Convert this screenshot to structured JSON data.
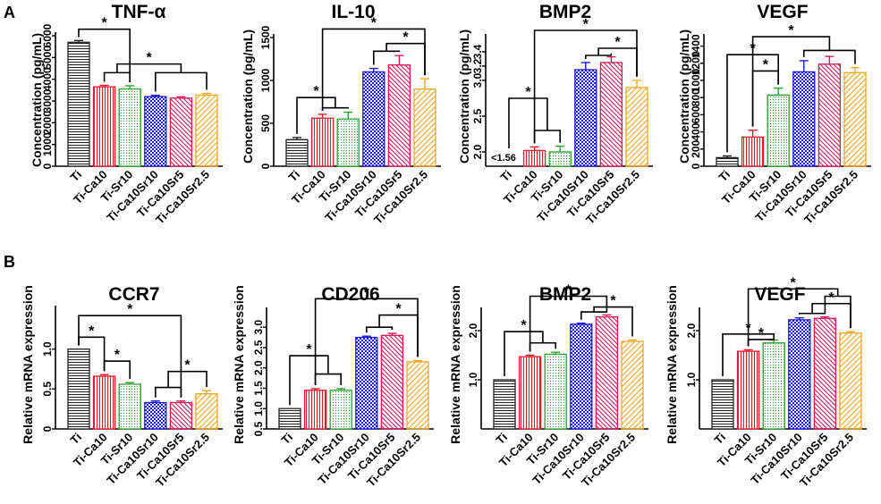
{
  "panels": [
    {
      "letter": "A"
    },
    {
      "letter": "B"
    }
  ],
  "groups": [
    "Ti",
    "Ti-Ca10",
    "Ti-Sr10",
    "Ti-Ca10Sr10",
    "Ti-Ca10Sr5",
    "Ti-Ca10Sr2.5"
  ],
  "group_colors": [
    "#222222",
    "#e8192c",
    "#2ca02c",
    "#1a1adc",
    "#d6185a",
    "#f5a623"
  ],
  "group_patterns": [
    "hlines",
    "vlines",
    "dots",
    "checker",
    "diag",
    "diagthin"
  ],
  "chart_data": [
    {
      "type": "bar",
      "panel": "A",
      "title": "TNF-α",
      "ylabel": "Concentration (pg/mL)",
      "categories": [
        "Ti",
        "Ti-Ca10",
        "Ti-Sr10",
        "Ti-Ca10Sr10",
        "Ti-Ca10Sr5",
        "Ti-Ca10Sr2.5"
      ],
      "values": [
        5700,
        3650,
        3550,
        3200,
        3130,
        3270
      ],
      "errors": [
        80,
        70,
        150,
        60,
        60,
        80
      ],
      "ylim": [
        0,
        6000
      ],
      "yticks": [
        0,
        1000,
        2000,
        3000,
        4000,
        5000,
        6000
      ],
      "ytick_labels": [
        "0",
        "1000",
        "2000",
        "3000",
        "4000",
        "5000",
        "6000"
      ],
      "annotations": [
        {
          "type": "bracket",
          "from": 0,
          "to": 2,
          "level": 6300,
          "label": "*"
        },
        {
          "type": "group-bracket",
          "left_from": 1,
          "left_to": 2,
          "right_from": 3,
          "right_to": 5,
          "low": 4300,
          "mid": 4700,
          "top": 5200,
          "label": "*"
        }
      ]
    },
    {
      "type": "bar",
      "panel": "A",
      "title": "IL-10",
      "ylabel": "Concentration (pg/mL)",
      "categories": [
        "Ti",
        "Ti-Ca10",
        "Ti-Sr10",
        "Ti-Ca10Sr10",
        "Ti-Ca10Sr5",
        "Ti-Ca10Sr2.5"
      ],
      "values": [
        310,
        560,
        550,
        1100,
        1180,
        900
      ],
      "errors": [
        25,
        45,
        80,
        40,
        110,
        120
      ],
      "ylim": [
        0,
        1500
      ],
      "yticks": [
        0,
        500,
        1000,
        1500
      ],
      "ytick_labels": [
        "0",
        "500",
        "1000",
        "1500"
      ],
      "annotations": [
        {
          "type": "group-bracket-single",
          "single": 0,
          "group_from": 1,
          "group_to": 2,
          "group_low": 680,
          "level": 800,
          "label": "*"
        },
        {
          "type": "group-bracket-single",
          "single": 5,
          "group_from": 3,
          "group_to": 4,
          "group_low": 1340,
          "level": 1430,
          "label": "*"
        },
        {
          "type": "bracket",
          "from": 1,
          "to": 5,
          "level": 1600,
          "label": "*"
        }
      ]
    },
    {
      "type": "bar",
      "panel": "A",
      "title": "BMP2",
      "ylabel": "Concentration (pg/mL)",
      "categories": [
        "Ti",
        "Ti-Ca10",
        "Ti-Sr10",
        "Ti-Ca10Sr10",
        "Ti-Ca10Sr5",
        "Ti-Ca10Sr2.5"
      ],
      "values": [
        null,
        2.02,
        2.0,
        3.15,
        3.25,
        2.9
      ],
      "errors": [
        0,
        0.05,
        0.08,
        0.1,
        0.08,
        0.1
      ],
      "ylim": [
        1.8,
        3.6
      ],
      "yticks": [
        2.0,
        2.5,
        3.0,
        3.2,
        3.4
      ],
      "ytick_labels": [
        "2.0",
        "2.5",
        "3.0",
        "3.2",
        "3.4"
      ],
      "below_limit_text": "<1.56",
      "annotations": [
        {
          "type": "group-bracket-single",
          "single": 0,
          "group_from": 1,
          "group_to": 2,
          "group_low": 2.3,
          "level": 2.75,
          "label": "*"
        },
        {
          "type": "group-bracket-single",
          "single": 5,
          "group_from": 3,
          "group_to": 4,
          "group_low": 3.35,
          "level": 3.45,
          "label": "*"
        },
        {
          "type": "bracket",
          "from": 1,
          "to": 5,
          "level": 3.7,
          "label": "*"
        }
      ]
    },
    {
      "type": "bar",
      "panel": "A",
      "title": "VEGF",
      "ylabel": "Concentration (pg/mL)",
      "categories": [
        "Ti",
        "Ti-Ca10",
        "Ti-Sr10",
        "Ti-Ca10Sr10",
        "Ti-Ca10Sr5",
        "Ti-Ca10Sr2.5"
      ],
      "values": [
        100,
        340,
        830,
        1100,
        1190,
        1090
      ],
      "errors": [
        20,
        80,
        80,
        130,
        90,
        60
      ],
      "ylim": [
        0,
        1500
      ],
      "yticks": [
        0,
        200,
        400,
        600,
        800,
        1000,
        1200,
        1400
      ],
      "ytick_labels": [
        "0",
        "200",
        "400",
        "600",
        "800",
        "1000",
        "1200",
        "1400"
      ],
      "annotations": [
        {
          "type": "bracket",
          "from": 0,
          "to": 2,
          "level": 1300,
          "label": "*"
        },
        {
          "type": "bracket",
          "from": 1,
          "to": 2,
          "level": 1110,
          "label": "*"
        },
        {
          "type": "group-bracket-single",
          "single": 1,
          "group_from": 3,
          "group_to": 5,
          "group_low": 1350,
          "level": 1510,
          "label": "*"
        }
      ]
    },
    {
      "type": "bar",
      "panel": "B",
      "title": "CCR7",
      "ylabel": "Relative mRNA expression",
      "categories": [
        "Ti",
        "Ti-Ca10",
        "Ti-Sr10",
        "Ti-Ca10Sr10",
        "Ti-Ca10Sr5",
        "Ti-Ca10Sr2.5"
      ],
      "values": [
        1.0,
        0.66,
        0.56,
        0.33,
        0.33,
        0.44
      ],
      "errors": [
        0,
        0.02,
        0.02,
        0.02,
        0.02,
        0.04
      ],
      "ylim": [
        0,
        1.5
      ],
      "yticks": [
        0,
        0.5,
        1.0
      ],
      "ytick_labels": [
        "0",
        "0.5",
        "1.0"
      ],
      "annotations": [
        {
          "type": "bracket",
          "from": 0,
          "to": 1,
          "level": 1.15,
          "label": "*"
        },
        {
          "type": "bracket",
          "from": 1,
          "to": 2,
          "level": 0.85,
          "label": "*"
        },
        {
          "type": "group-bracket-single",
          "single": 5,
          "group_from": 3,
          "group_to": 4,
          "group_low": 0.52,
          "level": 0.72,
          "label": "*"
        },
        {
          "type": "bracket",
          "from": 0,
          "to": 4,
          "level": 1.42,
          "label": "*"
        }
      ]
    },
    {
      "type": "bar",
      "panel": "B",
      "title": "CD206",
      "ylabel": "Relative mRNA expression",
      "categories": [
        "Ti",
        "Ti-Ca10",
        "Ti-Sr10",
        "Ti-Ca10Sr10",
        "Ti-Ca10Sr5",
        "Ti-Ca10Sr2.5"
      ],
      "values": [
        1.0,
        1.45,
        1.45,
        2.75,
        2.8,
        2.15
      ],
      "errors": [
        0,
        0.04,
        0.04,
        0.03,
        0.05,
        0.03
      ],
      "ylim": [
        0.5,
        3.4
      ],
      "yticks": [
        0.5,
        1.0,
        1.5,
        2.0,
        2.5,
        3.0
      ],
      "ytick_labels": [
        "0.5",
        "1.0",
        "1.5",
        "2.0",
        "2.5",
        "3.0"
      ],
      "annotations": [
        {
          "type": "group-bracket-single",
          "single": 0,
          "group_from": 1,
          "group_to": 2,
          "group_low": 1.85,
          "level": 2.3,
          "label": "*"
        },
        {
          "type": "group-bracket-single",
          "single": 5,
          "group_from": 3,
          "group_to": 4,
          "group_low": 3.0,
          "level": 3.3,
          "label": "*"
        },
        {
          "type": "bracket",
          "from": 1,
          "to": 5,
          "level": 3.7,
          "label": "*"
        }
      ]
    },
    {
      "type": "bar",
      "panel": "B",
      "title": "BMP2",
      "ylabel": "Relative mRNA expression",
      "categories": [
        "Ti",
        "Ti-Ca10",
        "Ti-Sr10",
        "Ti-Ca10Sr10",
        "Ti-Ca10Sr5",
        "Ti-Ca10Sr2.5"
      ],
      "values": [
        1.0,
        1.47,
        1.52,
        2.13,
        2.28,
        1.78
      ],
      "errors": [
        0,
        0.03,
        0.04,
        0.02,
        0.04,
        0.03
      ],
      "ylim": [
        0,
        2.4
      ],
      "yticks": [
        1.0,
        2.0
      ],
      "ytick_labels": [
        "1.0",
        "2.0"
      ],
      "annotations": [
        {
          "type": "group-bracket-single",
          "single": 0,
          "group_from": 1,
          "group_to": 2,
          "group_low": 1.75,
          "level": 1.98,
          "label": "*"
        },
        {
          "type": "group-bracket-single",
          "single": 5,
          "group_from": 3,
          "group_to": 4,
          "group_low": 2.38,
          "level": 2.48,
          "label": "*"
        },
        {
          "type": "bracket",
          "from": 1,
          "to": 4,
          "level": 2.7,
          "label": "*"
        }
      ]
    },
    {
      "type": "bar",
      "panel": "B",
      "title": "VEGF",
      "ylabel": "Relative mRNA expression",
      "categories": [
        "Ti",
        "Ti-Ca10",
        "Ti-Sr10",
        "Ti-Ca10Sr10",
        "Ti-Ca10Sr5",
        "Ti-Ca10Sr2.5"
      ],
      "values": [
        1.0,
        1.58,
        1.75,
        2.22,
        2.25,
        1.95
      ],
      "errors": [
        0,
        0.03,
        0.06,
        0.04,
        0.03,
        0.03
      ],
      "ylim": [
        0,
        2.4
      ],
      "yticks": [
        1.0,
        2.0
      ],
      "ytick_labels": [
        "1.0",
        "2.0"
      ],
      "annotations": [
        {
          "type": "bracket",
          "from": 0,
          "to": 2,
          "level": 1.93,
          "label": "*"
        },
        {
          "type": "bracket",
          "from": 1,
          "to": 2,
          "level": 1.82,
          "label": "*"
        },
        {
          "type": "group-bracket-single",
          "single": 5,
          "group_from": 3,
          "group_to": 4,
          "group_low": 2.35,
          "level": 2.55,
          "label": "*"
        },
        {
          "type": "group-bracket-single",
          "single": 1,
          "group_from": 4,
          "group_to": 5,
          "group_low": 2.7,
          "level": 2.85,
          "label": "*"
        }
      ]
    }
  ]
}
